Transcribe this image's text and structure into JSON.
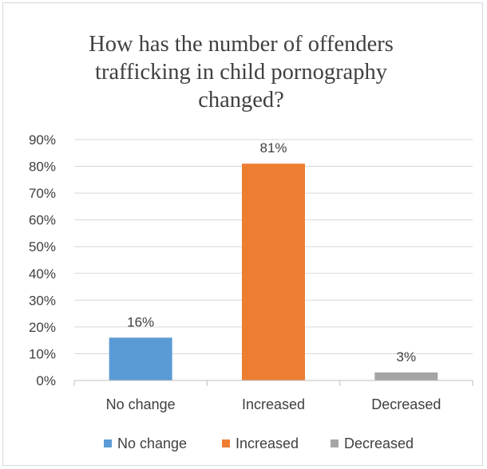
{
  "chart_data": {
    "type": "bar",
    "title_lines": [
      "How has the number of offenders",
      "trafficking in child pornography",
      "changed?"
    ],
    "categories": [
      "No change",
      "Increased",
      "Decreased"
    ],
    "values": [
      16,
      81,
      3
    ],
    "data_labels": [
      "16%",
      "81%",
      "3%"
    ],
    "colors": [
      "#5b9bd5",
      "#ed7d31",
      "#a5a5a5"
    ],
    "ylim": [
      0,
      90
    ],
    "yticks": [
      0,
      10,
      20,
      30,
      40,
      50,
      60,
      70,
      80,
      90
    ],
    "ytick_labels": [
      "0%",
      "10%",
      "20%",
      "30%",
      "40%",
      "50%",
      "60%",
      "70%",
      "80%",
      "90%"
    ],
    "grid": true,
    "legend": {
      "position": "bottom",
      "entries": [
        "No change",
        "Increased",
        "Decreased"
      ]
    }
  }
}
